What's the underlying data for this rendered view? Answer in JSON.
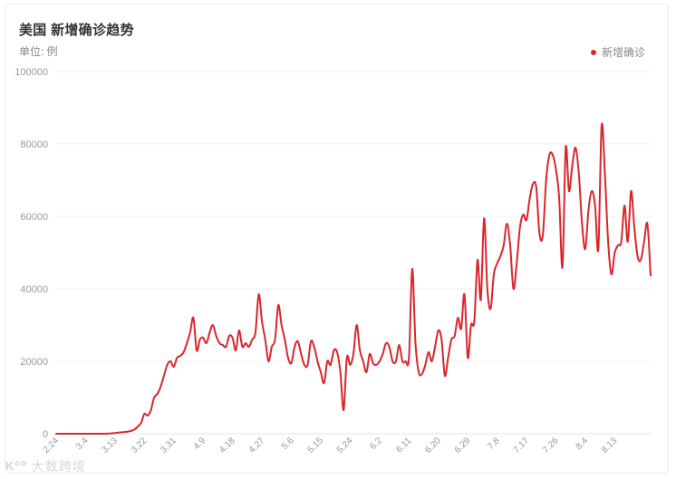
{
  "header": {
    "title": "美国 新增确诊趋势",
    "unit": "单位: 例"
  },
  "legend": {
    "label": "新增确诊",
    "color": "#d9262c"
  },
  "watermark": {
    "logo": "K⁰⁰",
    "text": "大数跨境"
  },
  "chart_data": {
    "type": "line",
    "title": "美国 新增确诊趋势",
    "subtitle": "单位: 例",
    "xlabel": "",
    "ylabel": "单位: 例",
    "ylim": [
      0,
      100000
    ],
    "yticks": [
      0,
      20000,
      40000,
      60000,
      80000,
      100000
    ],
    "grid": true,
    "legend_position": "top-right",
    "x_tick_labels": [
      "2.24",
      "3.4",
      "3.13",
      "3.22",
      "3.31",
      "4.9",
      "4.18",
      "4.27",
      "5.6",
      "5.15",
      "5.24",
      "6.2",
      "6.11",
      "6.20",
      "6.29",
      "7.8",
      "7.17",
      "7.26",
      "8.4",
      "8.13"
    ],
    "series": [
      {
        "name": "新增确诊",
        "color": "#d9262c",
        "x_start": "2.24",
        "x_end": "8.13",
        "values": [
          0,
          0,
          0,
          0,
          0,
          0,
          0,
          0,
          0,
          0,
          0,
          0,
          0,
          0,
          0,
          0,
          50,
          100,
          200,
          300,
          400,
          500,
          600,
          800,
          1200,
          2000,
          3000,
          5500,
          5000,
          6500,
          10000,
          11000,
          13000,
          16000,
          19000,
          20000,
          18500,
          21000,
          21500,
          22500,
          25000,
          28000,
          32000,
          23000,
          26000,
          26500,
          25000,
          28000,
          30000,
          27000,
          25000,
          24500,
          24000,
          27000,
          26500,
          23000,
          28500,
          24000,
          25000,
          24000,
          26000,
          28000,
          38500,
          31000,
          26000,
          20000,
          24000,
          26000,
          35500,
          30000,
          26000,
          21000,
          19500,
          24000,
          25500,
          22000,
          19000,
          19000,
          25500,
          24000,
          20000,
          17000,
          14000,
          20000,
          19000,
          23000,
          22500,
          17000,
          6500,
          21000,
          19000,
          22000,
          30000,
          23000,
          20000,
          17000,
          22000,
          19500,
          19000,
          20000,
          22000,
          25000,
          24000,
          20000,
          20000,
          24500,
          20000,
          20000,
          21000,
          45500,
          25000,
          17000,
          16500,
          19000,
          22500,
          20000,
          24000,
          28500,
          26000,
          16000,
          21000,
          26000,
          27000,
          32000,
          29000,
          38500,
          21000,
          30000,
          31000,
          48000,
          37000,
          59500,
          40000,
          34500,
          44000,
          47000,
          49000,
          52000,
          58000,
          52000,
          40000,
          47000,
          57000,
          60500,
          59000,
          65000,
          69000,
          68000,
          55000,
          55000,
          70000,
          77000,
          77000,
          73000,
          65000,
          46000,
          79000,
          67000,
          74000,
          79000,
          72000,
          58000,
          51000,
          62000,
          67000,
          63000,
          51000,
          85000,
          72000,
          53000,
          44000,
          50000,
          52000,
          53000,
          63000,
          53000,
          67000,
          57000,
          49000,
          48000,
          53000,
          58000,
          43700
        ]
      }
    ]
  }
}
